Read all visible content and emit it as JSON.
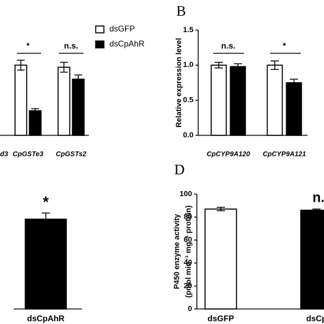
{
  "chart_data": [
    {
      "type": "bar",
      "categories": [
        "d3",
        "CpGSTe3",
        "CpGSTs2"
      ],
      "series": [
        {
          "name": "dsGFP",
          "color": "#ffffff",
          "values": [
            null,
            1.0,
            0.97
          ],
          "errors": [
            null,
            0.07,
            0.07
          ]
        },
        {
          "name": "dsCpAhR",
          "color": "#000000",
          "values": [
            null,
            0.35,
            0.8
          ],
          "errors": [
            null,
            0.03,
            0.06
          ]
        }
      ],
      "annotations": [
        "*",
        "n.s."
      ]
    },
    {
      "type": "bar",
      "label": "B",
      "ylabel": [
        "Relative expression level"
      ],
      "categories": [
        "CpCYP9A120",
        "CpCYP9A121"
      ],
      "series": [
        {
          "name": "dsGFP",
          "color": "#ffffff",
          "values": [
            1.0,
            1.0
          ],
          "errors": [
            0.04,
            0.06
          ]
        },
        {
          "name": "dsCpAhR",
          "color": "#000000",
          "values": [
            0.98,
            0.75
          ],
          "errors": [
            0.04,
            0.05
          ]
        }
      ],
      "ylim": [
        0,
        1.5
      ],
      "yticks": [
        {
          "value": 0,
          "label": "0.0"
        },
        {
          "value": 0.5,
          "label": "0.5"
        },
        {
          "value": 1,
          "label": "1.0"
        },
        {
          "value": 1.5,
          "label": "1.5"
        }
      ],
      "annotations": [
        "n.s.",
        "*"
      ]
    },
    {
      "type": "bar",
      "categories": [
        "dsCpAhR"
      ],
      "values": [
        0.73
      ],
      "errors": [
        0.05
      ],
      "color": "#000000",
      "annotations": [
        "*"
      ]
    },
    {
      "type": "bar",
      "label": "D",
      "ylabel": [
        "P450 enzyme activity",
        "(pmol min⁻¹ mg⁻¹ protein)"
      ],
      "categories": [
        "dsGFP",
        "dsCp"
      ],
      "series": [
        {
          "name": "dsGFP",
          "color": "#ffffff",
          "values": [
            87,
            null
          ],
          "errors": [
            1.5,
            null
          ]
        },
        {
          "name": "dsCpAhR",
          "color": "#000000",
          "values": [
            null,
            86
          ],
          "errors": [
            null,
            1
          ]
        }
      ],
      "ylim": [
        0,
        100
      ],
      "yticks": [
        0,
        20,
        40,
        60,
        80,
        100
      ],
      "annotations": [
        "n."
      ]
    }
  ]
}
